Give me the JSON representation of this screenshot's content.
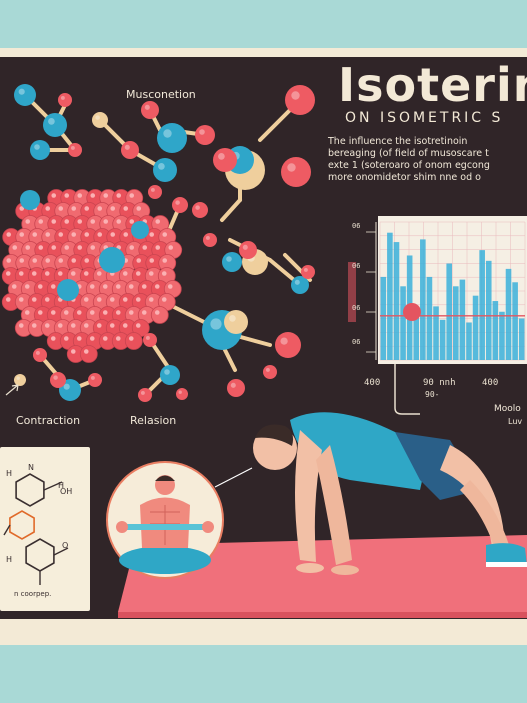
{
  "poster": {
    "title": "Isoterin",
    "subtitle": "on isometric s",
    "intro_lines": [
      "The influence the isotretinoin",
      "bereaging (of field of musoscare t",
      "exte 1 (soteroaro of onom egcong",
      "more onomidetor shim nne od o"
    ]
  },
  "labels": {
    "muscle": "Musconetion",
    "contraction": "Contraction",
    "relaxation": "Relasion",
    "molecule_caption": "n coorpep.",
    "side_label": "Moolo",
    "side_label2": "Luv"
  },
  "chart_data": {
    "type": "bar",
    "y_ticks": [
      "06",
      "06",
      "06",
      "06"
    ],
    "x_ticks": [
      "400",
      "90 nnh",
      "400"
    ],
    "x_note": "90-",
    "values": [
      0.62,
      0.95,
      0.88,
      0.55,
      0.78,
      0.34,
      0.9,
      0.62,
      0.4,
      0.3,
      0.72,
      0.55,
      0.6,
      0.28,
      0.48,
      0.82,
      0.74,
      0.44,
      0.36,
      0.68,
      0.58,
      0.31
    ]
  },
  "colors": {
    "board": "#302528",
    "atom_red": "#ee5b63",
    "atom_blue": "#2fa6c9",
    "atom_cream": "#efcf9d",
    "mat": "#f0707b",
    "teal": "#a9d9d6"
  },
  "icons": [
    "molecule-icon",
    "chemical-structure-icon",
    "arrow-icon"
  ]
}
